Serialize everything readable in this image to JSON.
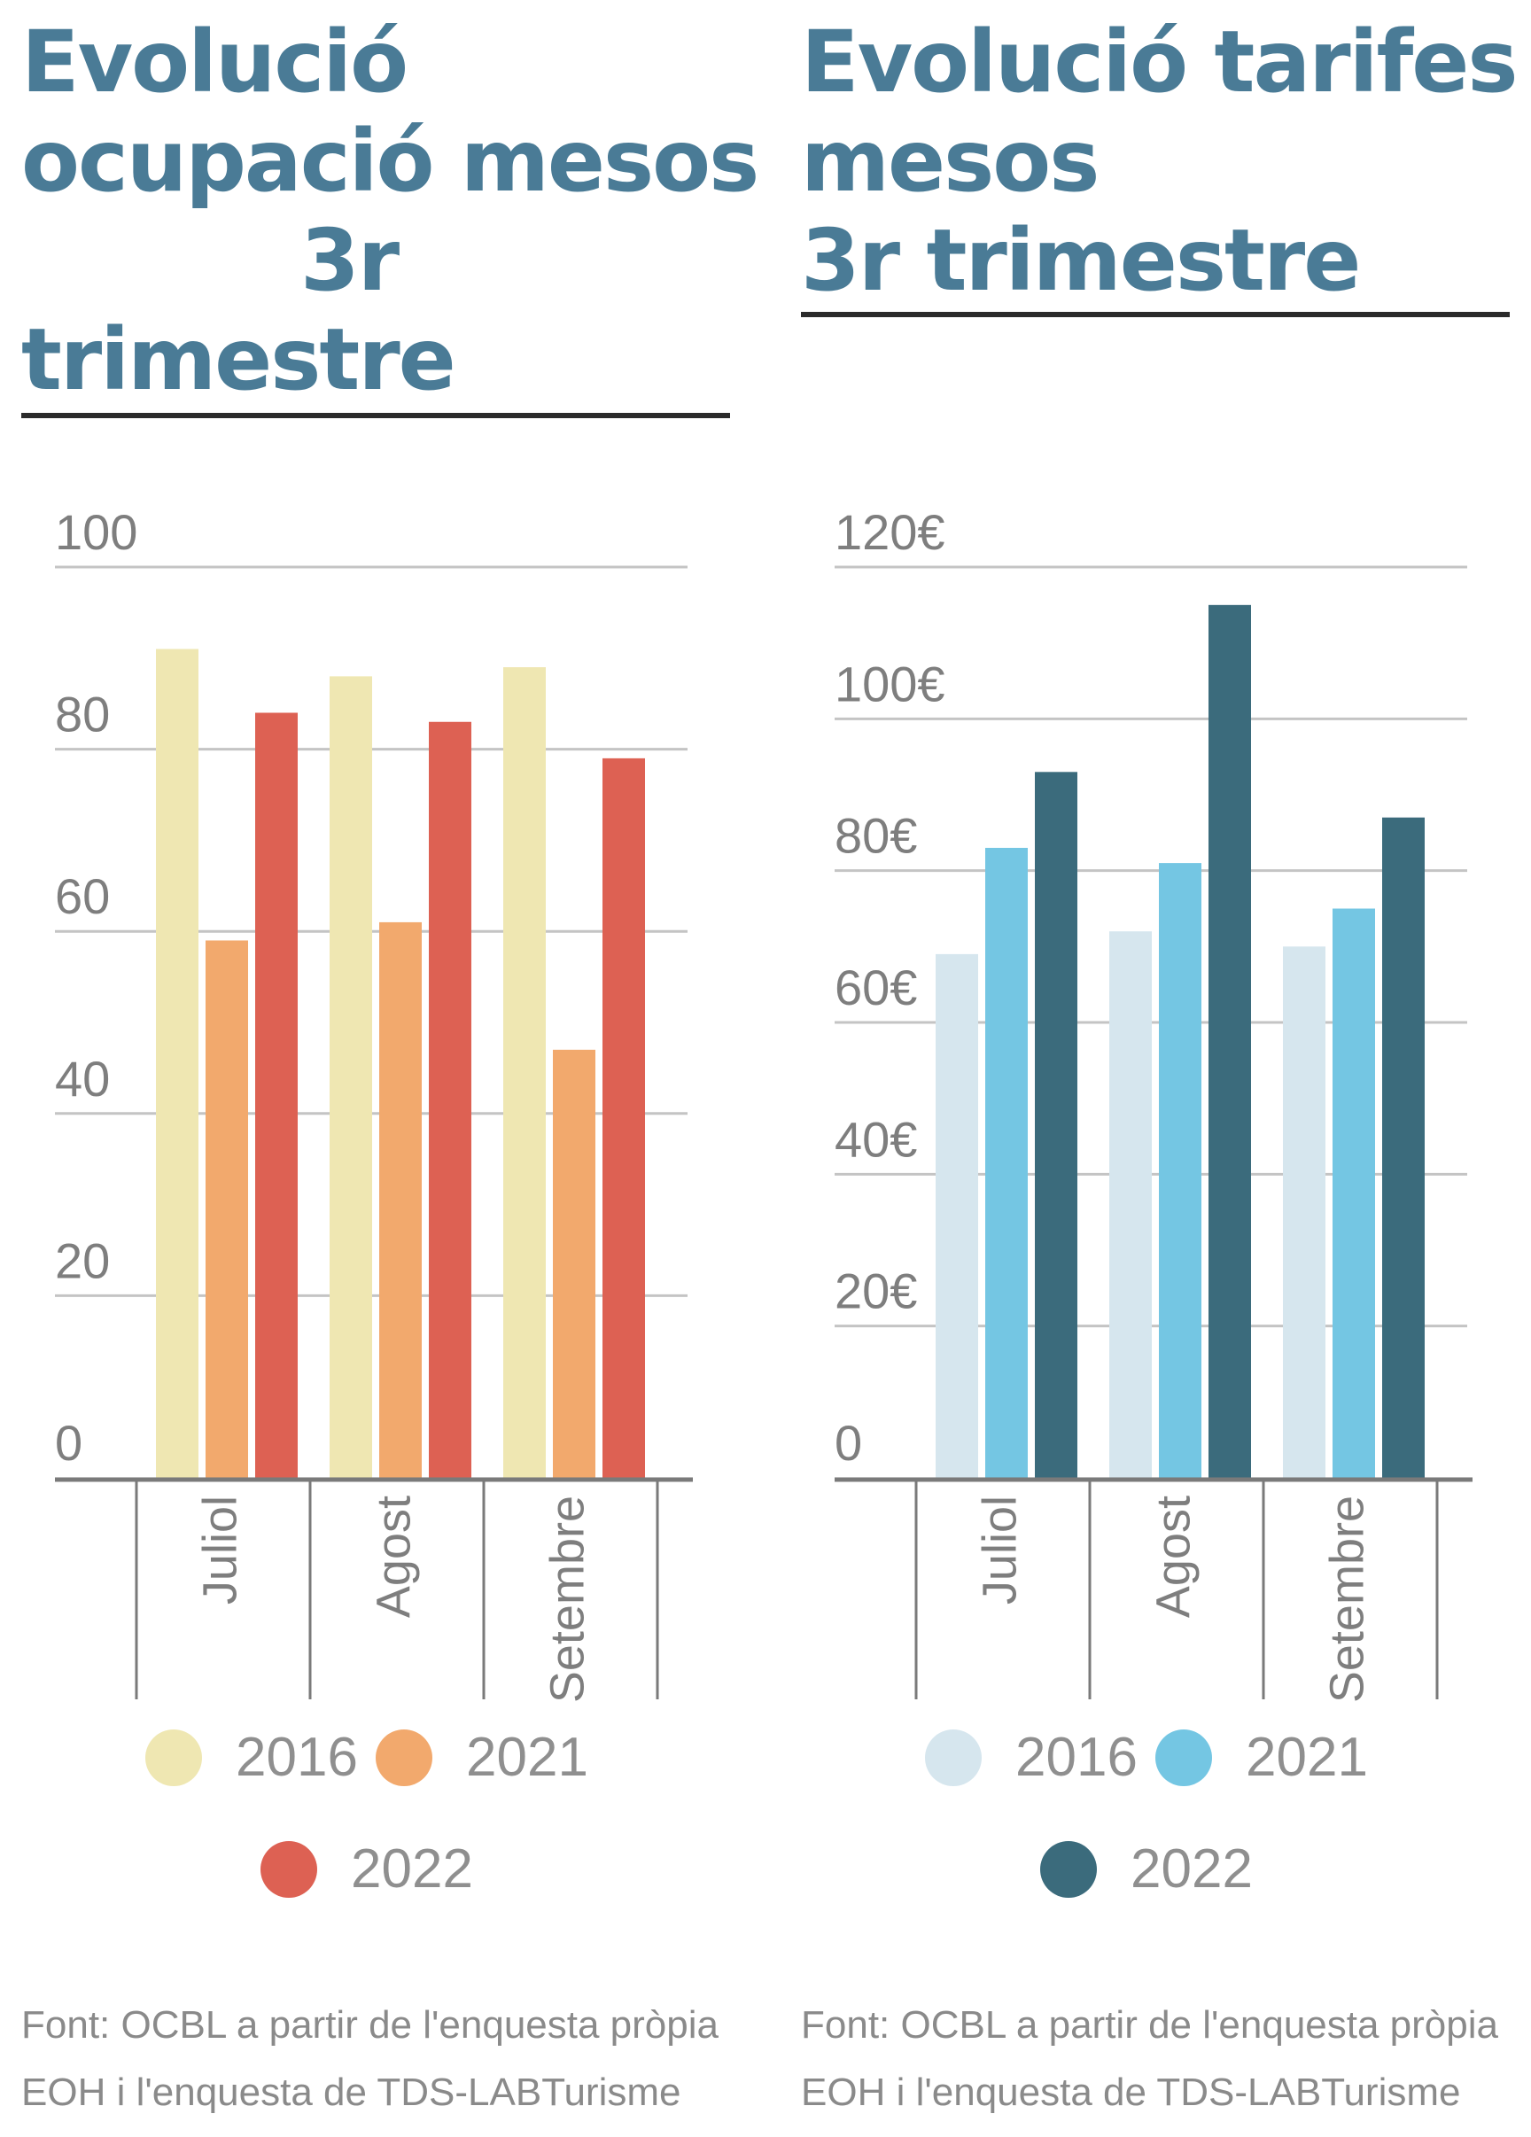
{
  "chart_data": [
    {
      "type": "bar",
      "title_lines": [
        "Evolució",
        "ocupació mesos",
        "3r",
        "trimestre"
      ],
      "categories": [
        "Juliol",
        "Agost",
        "Setembre"
      ],
      "series": [
        {
          "name": "2016",
          "color": "#efe7b2",
          "values": [
            91,
            88,
            89
          ]
        },
        {
          "name": "2021",
          "color": "#f2a96d",
          "values": [
            59,
            61,
            47
          ]
        },
        {
          "name": "2022",
          "color": "#dd6153",
          "values": [
            84,
            83,
            79
          ]
        }
      ],
      "ylim": [
        0,
        100
      ],
      "yticks": [
        0,
        20,
        40,
        60,
        80,
        100
      ],
      "ytick_labels": [
        "0",
        "20",
        "40",
        "60",
        "80",
        "100"
      ],
      "grid": true,
      "legend_labels": [
        "2016",
        "2021",
        "2022"
      ],
      "source_lines": [
        "Font: OCBL a partir de l'enquesta pròpia",
        "EOH i l'enquesta de TDS-LABTurisme"
      ]
    },
    {
      "type": "bar",
      "title_lines": [
        "Evolució tarifes",
        "mesos",
        "3r trimestre"
      ],
      "categories": [
        "Juliol",
        "Agost",
        "Setembre"
      ],
      "series": [
        {
          "name": "2016",
          "color": "#d6e6ee",
          "values": [
            69,
            72,
            70
          ]
        },
        {
          "name": "2021",
          "color": "#74c6e3",
          "values": [
            83,
            81,
            75
          ]
        },
        {
          "name": "2022",
          "color": "#3b6b7c",
          "values": [
            93,
            115,
            87
          ]
        }
      ],
      "ylim": [
        0,
        120
      ],
      "yticks": [
        0,
        20,
        40,
        60,
        80,
        100,
        120
      ],
      "ytick_labels": [
        "0",
        "20€",
        "40€",
        "60€",
        "80€",
        "100€",
        "120€"
      ],
      "grid": true,
      "legend_labels": [
        "2016",
        "2021",
        "2022"
      ],
      "source_lines": [
        "Font: OCBL a partir de l'enquesta pròpia",
        "EOH i l'enquesta de TDS-LABTurisme"
      ]
    }
  ],
  "colors": {
    "title": "#4a7b96",
    "grid": "#c4c4c4",
    "axis": "#7a7a7a",
    "tick_text": "#7e7e7e"
  }
}
